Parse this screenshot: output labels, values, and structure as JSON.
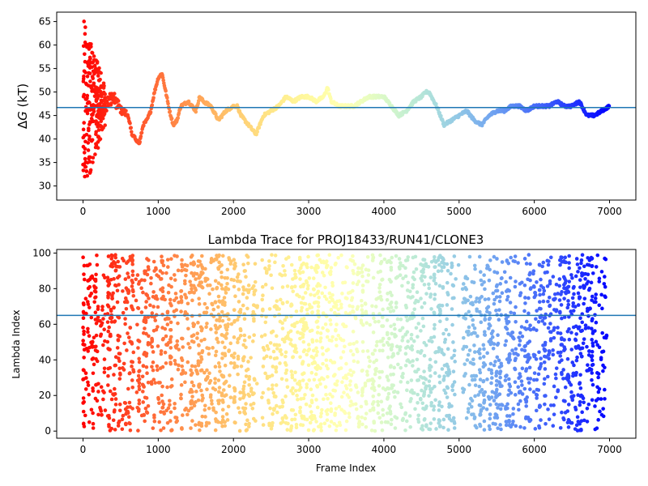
{
  "chart_data": [
    {
      "type": "scatter",
      "title": "",
      "xlabel": "",
      "ylabel": "ΔG (kT)",
      "xlim": [
        -350,
        7350
      ],
      "ylim": [
        27,
        67
      ],
      "xticks": [
        0,
        1000,
        2000,
        3000,
        4000,
        5000,
        6000,
        7000
      ],
      "yticks": [
        30,
        35,
        40,
        45,
        50,
        55,
        60,
        65
      ],
      "hline": 46.7,
      "colormap": "rainbow (red at frame 0 to violet at frame 7000)",
      "grid": false,
      "legend": "none",
      "trace": [
        [
          0,
          32
        ],
        [
          20,
          60
        ],
        [
          40,
          54
        ],
        [
          60,
          43
        ],
        [
          80,
          58
        ],
        [
          100,
          50
        ],
        [
          150,
          52
        ],
        [
          200,
          48
        ],
        [
          250,
          45
        ],
        [
          300,
          47
        ],
        [
          400,
          49
        ],
        [
          500,
          46
        ],
        [
          600,
          45
        ],
        [
          650,
          41
        ],
        [
          700,
          40
        ],
        [
          750,
          39
        ],
        [
          800,
          43
        ],
        [
          850,
          44
        ],
        [
          900,
          46
        ],
        [
          950,
          50
        ],
        [
          1000,
          53
        ],
        [
          1050,
          54
        ],
        [
          1100,
          50
        ],
        [
          1150,
          46
        ],
        [
          1200,
          43
        ],
        [
          1250,
          44
        ],
        [
          1300,
          47
        ],
        [
          1400,
          48
        ],
        [
          1500,
          46
        ],
        [
          1550,
          49
        ],
        [
          1600,
          48
        ],
        [
          1700,
          47
        ],
        [
          1800,
          44
        ],
        [
          1850,
          45
        ],
        [
          1900,
          46
        ],
        [
          2000,
          47
        ],
        [
          2050,
          47
        ],
        [
          2100,
          45
        ],
        [
          2200,
          43
        ],
        [
          2300,
          41
        ],
        [
          2400,
          45
        ],
        [
          2500,
          46
        ],
        [
          2600,
          47
        ],
        [
          2700,
          49
        ],
        [
          2800,
          48
        ],
        [
          2900,
          49
        ],
        [
          3000,
          49
        ],
        [
          3100,
          48
        ],
        [
          3200,
          49
        ],
        [
          3250,
          51
        ],
        [
          3300,
          48
        ],
        [
          3400,
          47
        ],
        [
          3500,
          47
        ],
        [
          3600,
          47
        ],
        [
          3700,
          48
        ],
        [
          3800,
          49
        ],
        [
          3900,
          49
        ],
        [
          4000,
          49
        ],
        [
          4100,
          47
        ],
        [
          4200,
          45
        ],
        [
          4300,
          46
        ],
        [
          4400,
          48
        ],
        [
          4500,
          49
        ],
        [
          4560,
          50
        ],
        [
          4600,
          50
        ],
        [
          4700,
          47
        ],
        [
          4800,
          43
        ],
        [
          4900,
          44
        ],
        [
          5000,
          45
        ],
        [
          5100,
          46
        ],
        [
          5200,
          44
        ],
        [
          5300,
          43
        ],
        [
          5400,
          45
        ],
        [
          5500,
          46
        ],
        [
          5600,
          46
        ],
        [
          5700,
          47
        ],
        [
          5800,
          47
        ],
        [
          5900,
          46
        ],
        [
          6000,
          47
        ],
        [
          6100,
          47
        ],
        [
          6200,
          47
        ],
        [
          6300,
          48
        ],
        [
          6400,
          47
        ],
        [
          6500,
          47
        ],
        [
          6600,
          48
        ],
        [
          6700,
          45
        ],
        [
          6800,
          45
        ],
        [
          6900,
          46
        ],
        [
          7000,
          47
        ]
      ],
      "early_scatter": {
        "x_range": [
          0,
          300
        ],
        "y_range": [
          32,
          66
        ]
      }
    },
    {
      "type": "scatter",
      "title": "Lambda Trace for PROJ18433/RUN41/CLONE3",
      "xlabel": "Frame Index",
      "ylabel": "Lambda Index",
      "xlim": [
        -350,
        7350
      ],
      "ylim": [
        -4,
        102
      ],
      "xticks": [
        0,
        1000,
        2000,
        3000,
        4000,
        5000,
        6000,
        7000
      ],
      "yticks": [
        0,
        20,
        40,
        60,
        80,
        100
      ],
      "hline": 65,
      "colormap": "rainbow (red at frame 0 to violet at frame 7000)",
      "grid": false,
      "legend": "none",
      "value_range": [
        0,
        99
      ],
      "frame_range": [
        0,
        7000
      ],
      "density_gaps": [
        [
          2250,
          2350
        ],
        [
          4900,
          5000
        ],
        [
          5800,
          5850
        ]
      ]
    }
  ]
}
